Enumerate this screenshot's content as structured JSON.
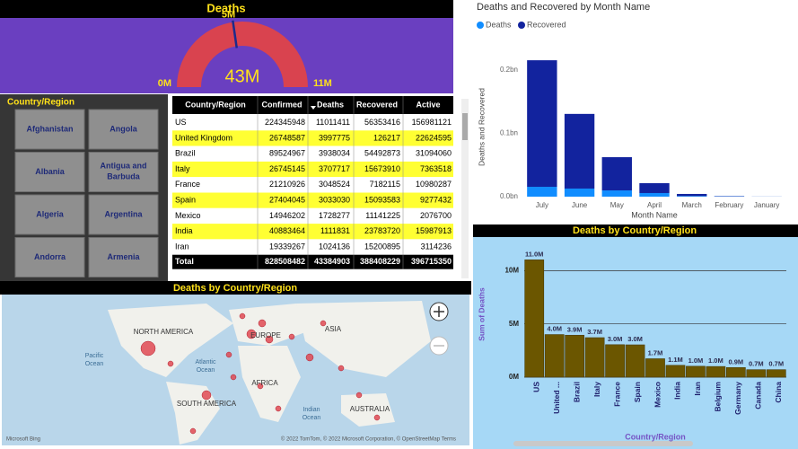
{
  "gauge": {
    "title": "Deaths",
    "ticks": [
      {
        "value": 0,
        "label": "0M"
      },
      {
        "value": 11,
        "label": "11M"
      }
    ],
    "target": {
      "value": 5,
      "label": "5M"
    },
    "value": 43,
    "value_label": "43M"
  },
  "slicer": {
    "title": "Country/Region",
    "items": [
      "Afghanistan",
      "Angola",
      "Albania",
      "Antigua and Barbuda",
      "Algeria",
      "Argentina",
      "Andorra",
      "Armenia"
    ]
  },
  "table": {
    "headers": [
      "Country/Region",
      "Confirmed",
      "Deaths",
      "Recovered",
      "Active"
    ],
    "rows": [
      [
        "US",
        224345948,
        11011411,
        56353416,
        156981121
      ],
      [
        "United Kingdom",
        26748587,
        3997775,
        126217,
        22624595
      ],
      [
        "Brazil",
        89524967,
        3938034,
        54492873,
        31094060
      ],
      [
        "Italy",
        26745145,
        3707717,
        15673910,
        7363518
      ],
      [
        "France",
        21210926,
        3048524,
        7182115,
        10980287
      ],
      [
        "Spain",
        27404045,
        3033030,
        15093583,
        9277432
      ],
      [
        "Mexico",
        14946202,
        1728277,
        11141225,
        2076700
      ],
      [
        "India",
        40883464,
        1111831,
        23783720,
        15987913
      ],
      [
        "Iran",
        19339267,
        1024136,
        15200895,
        3114236
      ]
    ],
    "total": [
      "Total",
      828508482,
      43384903,
      388408229,
      396715350
    ]
  },
  "map": {
    "title": "Deaths by Country/Region",
    "labels": [
      "NORTH AMERICA",
      "SOUTH AMERICA",
      "EUROPE",
      "ASIA",
      "AFRICA",
      "AUSTRALIA",
      "Pacific Ocean",
      "Atlantic Ocean",
      "Indian Ocean"
    ],
    "attribution": "© 2022 TomTom, © 2022 Microsoft Corporation, © OpenStreetMap  Terms",
    "brand": "Microsoft Bing"
  },
  "chart_data": [
    {
      "type": "stacked_bar",
      "title": "Deaths and Recovered by Month Name",
      "x_label": "Month Name",
      "y_label": "Deaths and Recovered",
      "categories": [
        "July",
        "June",
        "May",
        "April",
        "March",
        "February",
        "January"
      ],
      "series": [
        {
          "name": "Deaths",
          "color": "#118dff",
          "values": [
            0.0156,
            0.0128,
            0.0099,
            0.0057,
            0.001,
            0.0005,
            0.0001
          ]
        },
        {
          "name": "Recovered",
          "color": "#12239e",
          "values": [
            0.2,
            0.118,
            0.0525,
            0.0156,
            0.0033,
            0.0005,
            0.0001
          ]
        }
      ],
      "ylim": [
        0,
        0.22
      ],
      "yticks": [
        {
          "value": 0,
          "label": "0.0bn"
        },
        {
          "value": 0.1,
          "label": "0.1bn"
        },
        {
          "value": 0.2,
          "label": "0.2bn"
        }
      ],
      "grid": false,
      "legend": "top-left"
    },
    {
      "type": "bar",
      "title": "Deaths by Country/Region",
      "x_label": "Country/Region",
      "y_label": "Sum of Deaths",
      "categories": [
        "US",
        "United ...",
        "Brazil",
        "Italy",
        "France",
        "Spain",
        "Mexico",
        "India",
        "Iran",
        "Belgium",
        "Germany",
        "Canada",
        "China"
      ],
      "values": [
        11011411,
        3997775,
        3938034,
        3707717,
        3048524,
        3033030,
        1728277,
        1111831,
        1024136,
        1000000,
        900000,
        700000,
        700000
      ],
      "value_labels": [
        "11.0M",
        "4.0M",
        "3.9M",
        "3.7M",
        "3.0M",
        "3.0M",
        "1.7M",
        "1.1M",
        "1.0M",
        "1.0M",
        "0.9M",
        "0.7M",
        "0.7M"
      ],
      "color": "#6b5600",
      "ylim": [
        0,
        11800000
      ],
      "yticks": [
        {
          "value": 0,
          "label": "0M"
        },
        {
          "value": 5000000,
          "label": "5M"
        },
        {
          "value": 10000000,
          "label": "10M"
        }
      ],
      "grid": true
    }
  ]
}
